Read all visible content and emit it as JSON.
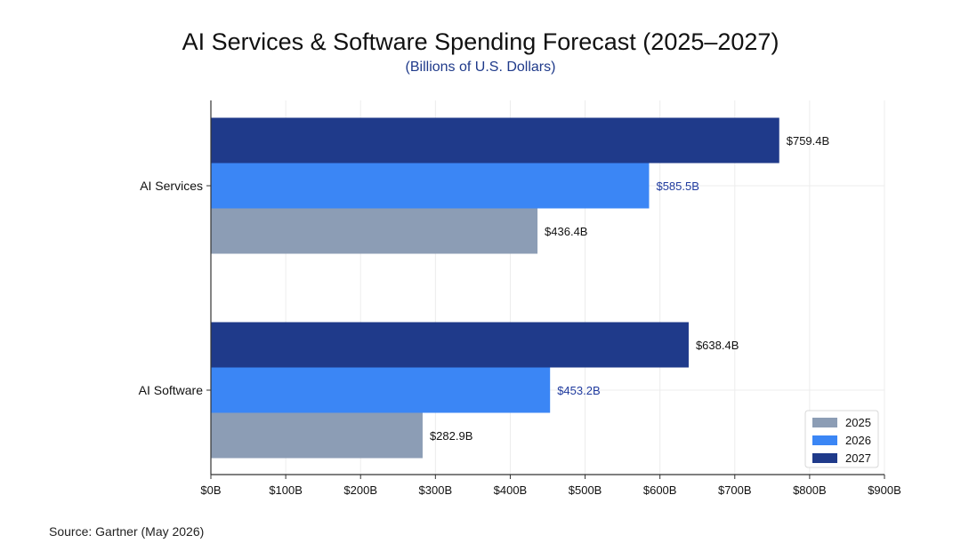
{
  "title": "AI Services & Software Spending Forecast (2025–2027)",
  "subtitle": "(Billions of U.S. Dollars)",
  "source": "Source: Gartner (May 2026)",
  "chart_data": {
    "type": "bar",
    "orientation": "horizontal",
    "categories": [
      "AI Services",
      "AI Software"
    ],
    "series": [
      {
        "name": "2025",
        "values": [
          436.4,
          282.9
        ],
        "labels": [
          "$436.4B",
          "$282.9B"
        ],
        "color": "#8c9db5",
        "label_color": "#111111"
      },
      {
        "name": "2026",
        "values": [
          585.5,
          453.2
        ],
        "labels": [
          "$585.5B",
          "$453.2B"
        ],
        "color": "#3b86f5",
        "label_color": "#1f3a9e"
      },
      {
        "name": "2027",
        "values": [
          759.4,
          638.4
        ],
        "labels": [
          "$759.4B",
          "$638.4B"
        ],
        "color": "#1f3a8a",
        "label_color": "#111111"
      }
    ],
    "xlim": [
      0,
      900
    ],
    "xticks": [
      0,
      100,
      200,
      300,
      400,
      500,
      600,
      700,
      800,
      900
    ],
    "xtick_labels": [
      "$0B",
      "$100B",
      "$200B",
      "$300B",
      "$400B",
      "$500B",
      "$600B",
      "$700B",
      "$800B",
      "$900B"
    ],
    "xlabel": "",
    "ylabel": "",
    "grid": true,
    "legend_position": "bottom-right"
  }
}
